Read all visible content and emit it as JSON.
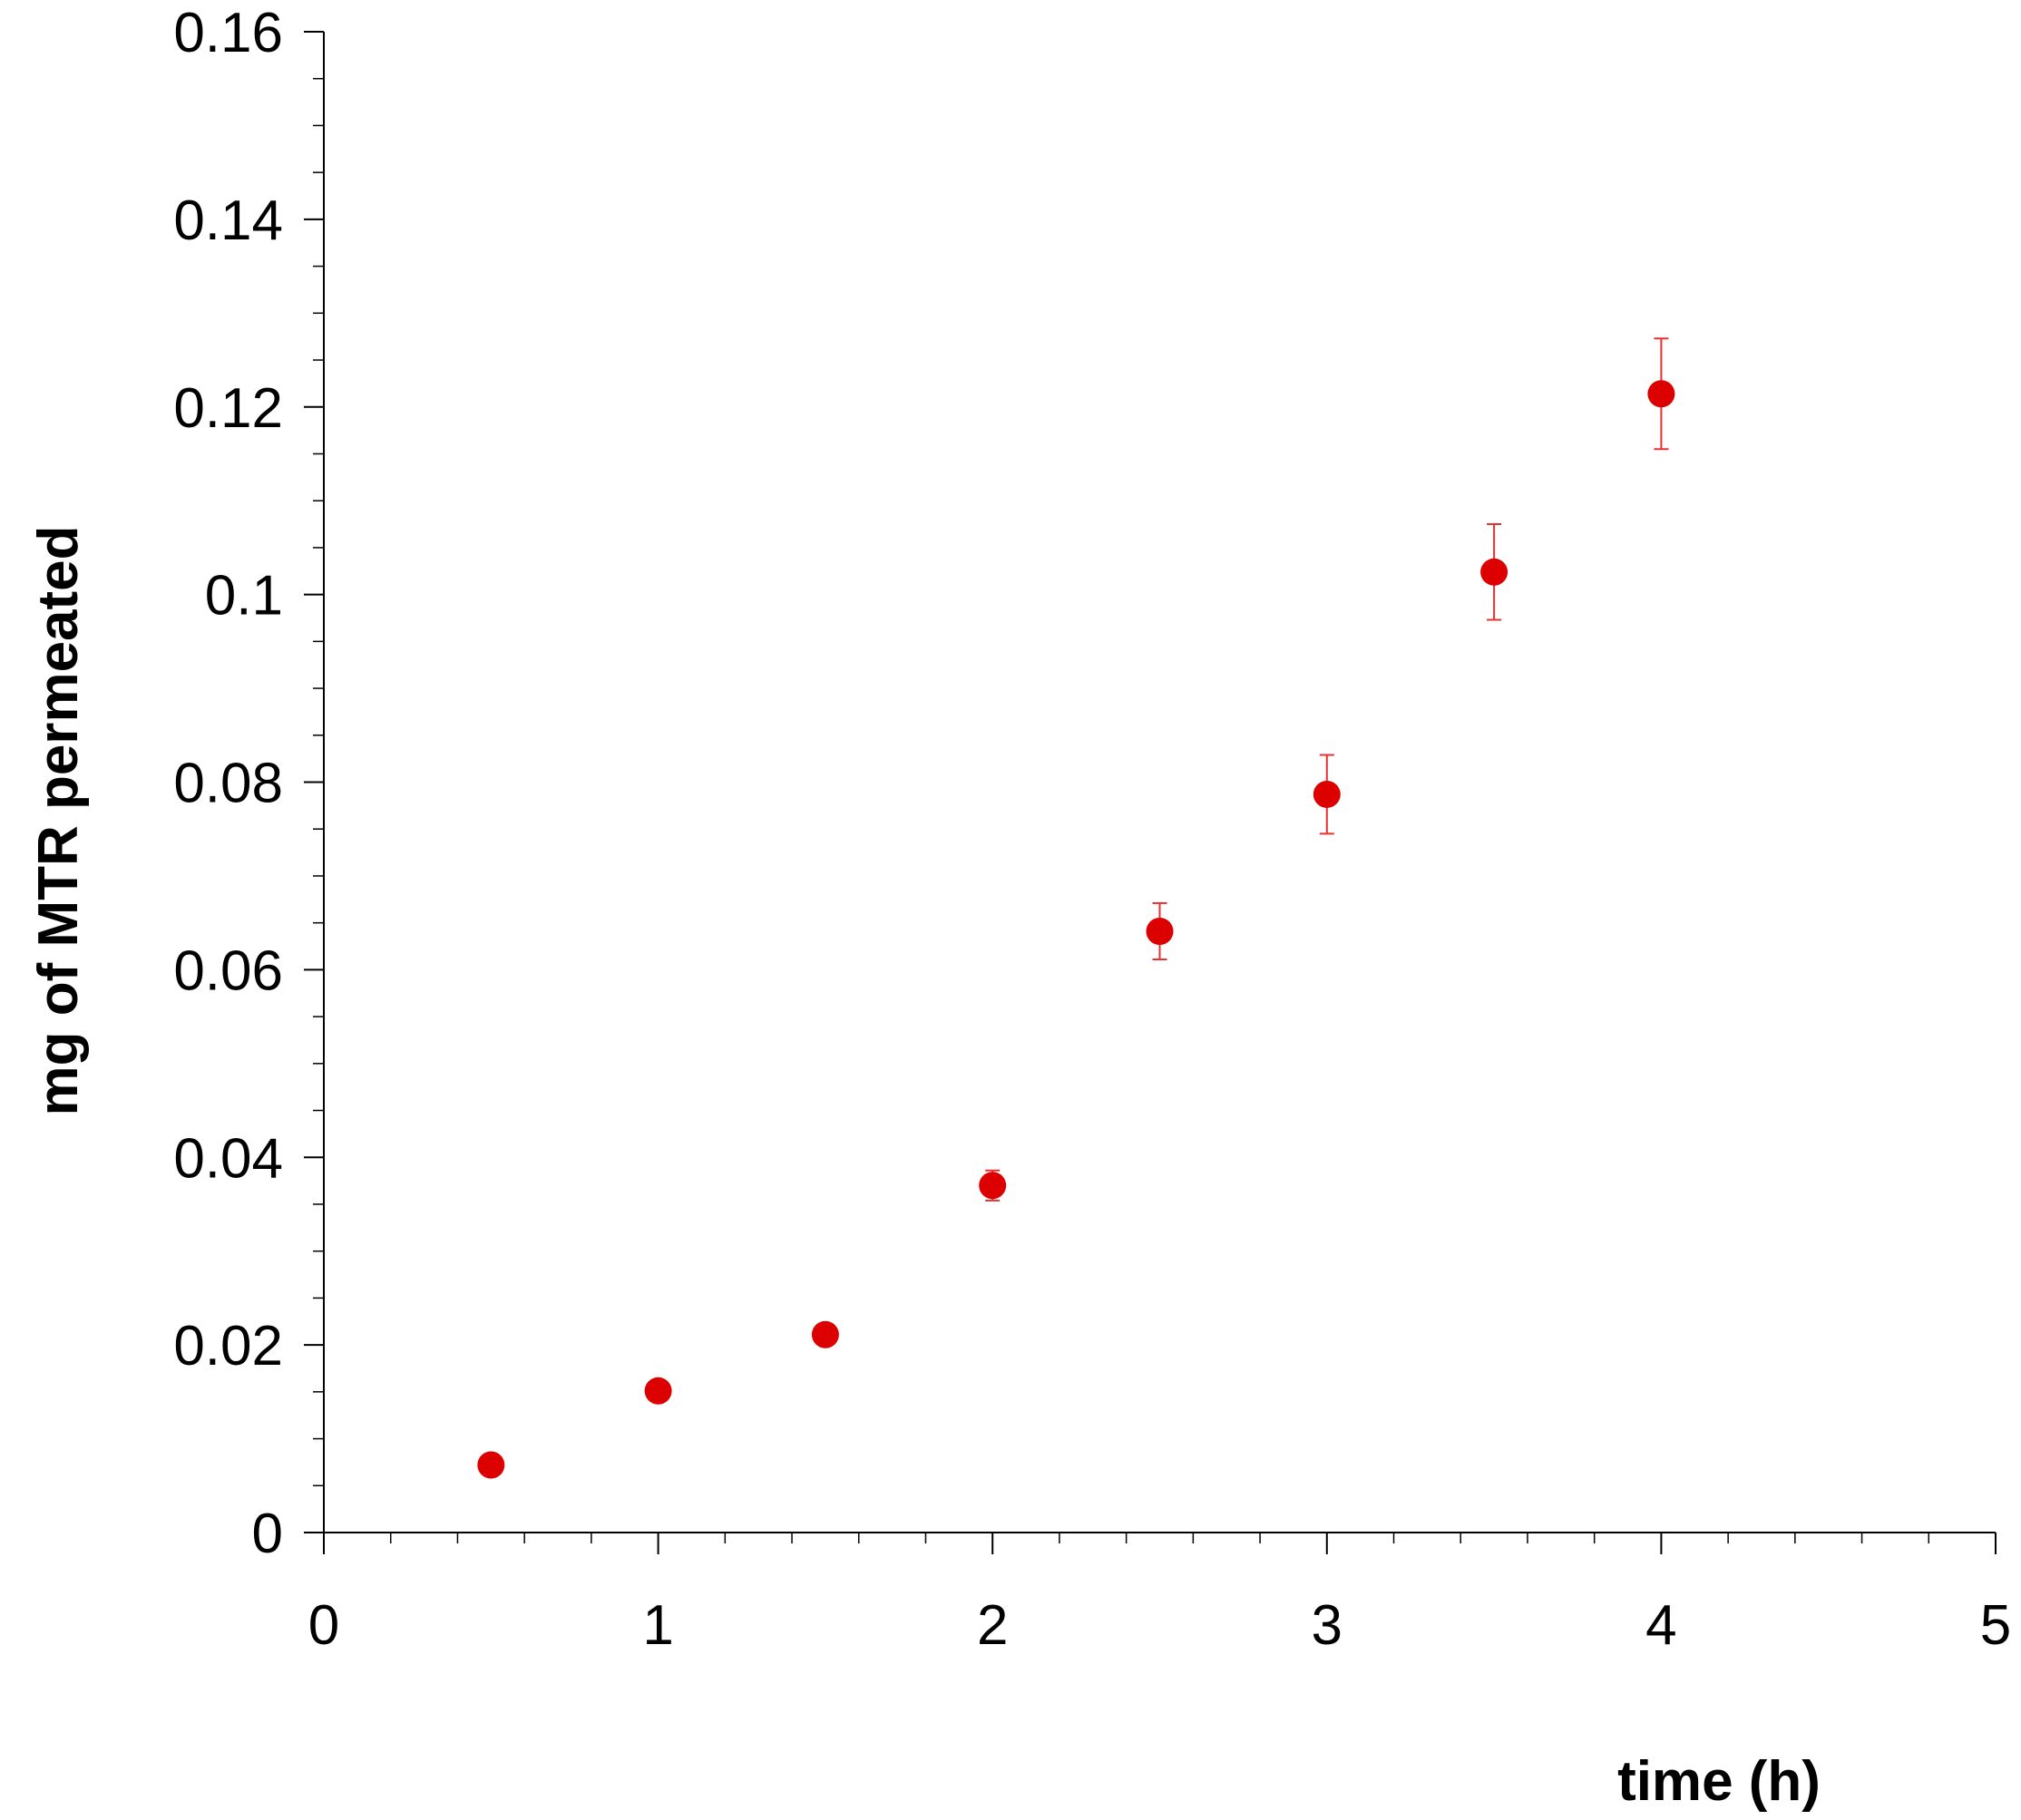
{
  "chart_data": {
    "type": "scatter",
    "xlabel": "time (h)",
    "ylabel": "mg of MTR permeated",
    "xlim": [
      0,
      5
    ],
    "ylim": [
      0,
      0.16
    ],
    "x_ticks": [
      "0",
      "1",
      "2",
      "3",
      "4",
      "5"
    ],
    "y_ticks": [
      "0",
      "0.02",
      "0.04",
      "0.06",
      "0.08",
      "0.1",
      "0.12",
      "0.14",
      "0.16"
    ],
    "grid": false,
    "legend": "none",
    "marker_color": "#dd0000",
    "errorbar_color": "#e83030",
    "series": [
      {
        "x": [
          0.5,
          1,
          1.5,
          2,
          2.5,
          3,
          3.5,
          4
        ],
        "y": [
          0.0072,
          0.0151,
          0.0211,
          0.037,
          0.0641,
          0.0787,
          0.1024,
          0.1214
        ],
        "error": [
          0.0003,
          0.0003,
          0.0005,
          0.0016,
          0.003,
          0.0042,
          0.0051,
          0.0059
        ]
      }
    ]
  }
}
